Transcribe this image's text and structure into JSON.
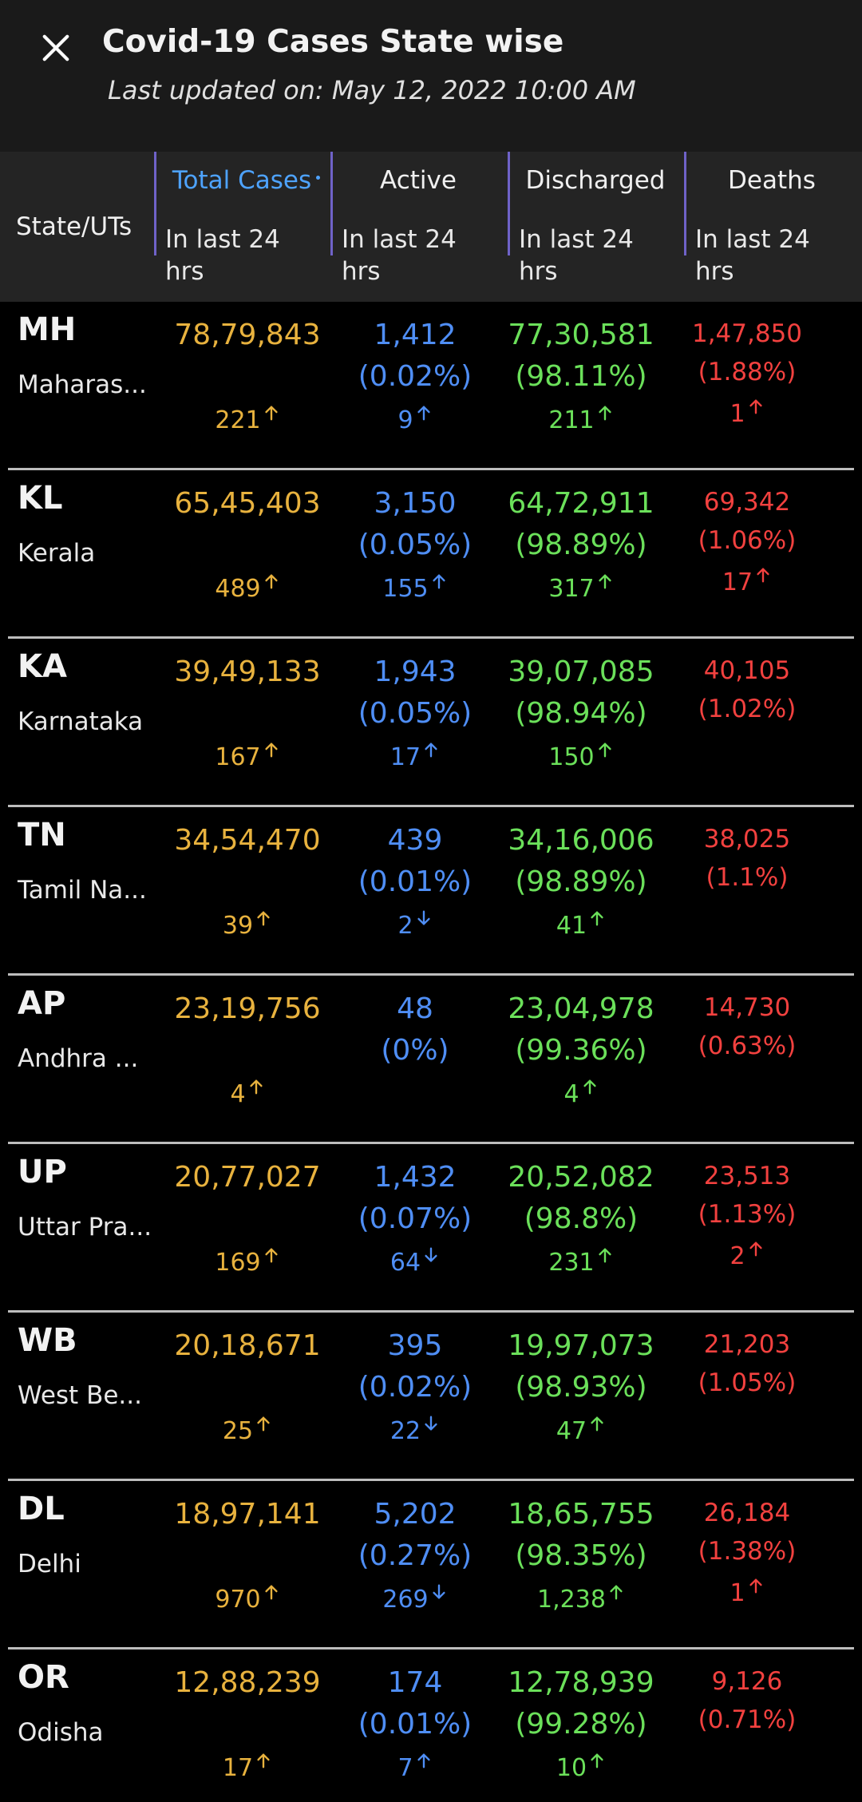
{
  "header": {
    "title": "Covid-19 Cases State wise",
    "last_updated": "Last updated on: May 12, 2022 10:00 AM"
  },
  "table": {
    "state_header": "State/UTs",
    "columns": [
      {
        "label": "Total Cases",
        "sub": "In last 24 hrs",
        "sorted": true
      },
      {
        "label": "Active",
        "sub": "In last 24 hrs",
        "sorted": false
      },
      {
        "label": "Discharged",
        "sub": "In last 24 hrs",
        "sorted": false
      },
      {
        "label": "Deaths",
        "sub": "In last 24 hrs",
        "sorted": false
      }
    ],
    "rows": [
      {
        "code": "MH",
        "name": "Maharas...",
        "total": "78,79,843",
        "total_delta": "221",
        "total_dir": "up",
        "active": "1,412",
        "active_pct": "(0.02%)",
        "active_delta": "9",
        "active_dir": "up",
        "discharged": "77,30,581",
        "discharged_pct": "(98.11%)",
        "discharged_delta": "211",
        "discharged_dir": "up",
        "deaths": "1,47,850",
        "deaths_pct": "(1.88%)",
        "deaths_delta": "1",
        "deaths_dir": "up"
      },
      {
        "code": "KL",
        "name": "Kerala",
        "total": "65,45,403",
        "total_delta": "489",
        "total_dir": "up",
        "active": "3,150",
        "active_pct": "(0.05%)",
        "active_delta": "155",
        "active_dir": "up",
        "discharged": "64,72,911",
        "discharged_pct": "(98.89%)",
        "discharged_delta": "317",
        "discharged_dir": "up",
        "deaths": "69,342",
        "deaths_pct": "(1.06%)",
        "deaths_delta": "17",
        "deaths_dir": "up"
      },
      {
        "code": "KA",
        "name": "Karnataka",
        "total": "39,49,133",
        "total_delta": "167",
        "total_dir": "up",
        "active": "1,943",
        "active_pct": "(0.05%)",
        "active_delta": "17",
        "active_dir": "up",
        "discharged": "39,07,085",
        "discharged_pct": "(98.94%)",
        "discharged_delta": "150",
        "discharged_dir": "up",
        "deaths": "40,105",
        "deaths_pct": "(1.02%)",
        "deaths_delta": "",
        "deaths_dir": ""
      },
      {
        "code": "TN",
        "name": "Tamil Na...",
        "total": "34,54,470",
        "total_delta": "39",
        "total_dir": "up",
        "active": "439",
        "active_pct": "(0.01%)",
        "active_delta": "2",
        "active_dir": "down",
        "discharged": "34,16,006",
        "discharged_pct": "(98.89%)",
        "discharged_delta": "41",
        "discharged_dir": "up",
        "deaths": "38,025",
        "deaths_pct": "(1.1%)",
        "deaths_delta": "",
        "deaths_dir": ""
      },
      {
        "code": "AP",
        "name": "Andhra ...",
        "total": "23,19,756",
        "total_delta": "4",
        "total_dir": "up",
        "active": "48",
        "active_pct": "(0%)",
        "active_delta": "",
        "active_dir": "",
        "discharged": "23,04,978",
        "discharged_pct": "(99.36%)",
        "discharged_delta": "4",
        "discharged_dir": "up",
        "deaths": "14,730",
        "deaths_pct": "(0.63%)",
        "deaths_delta": "",
        "deaths_dir": ""
      },
      {
        "code": "UP",
        "name": "Uttar Pra...",
        "total": "20,77,027",
        "total_delta": "169",
        "total_dir": "up",
        "active": "1,432",
        "active_pct": "(0.07%)",
        "active_delta": "64",
        "active_dir": "down",
        "discharged": "20,52,082",
        "discharged_pct": "(98.8%)",
        "discharged_delta": "231",
        "discharged_dir": "up",
        "deaths": "23,513",
        "deaths_pct": "(1.13%)",
        "deaths_delta": "2",
        "deaths_dir": "up"
      },
      {
        "code": "WB",
        "name": "West Be...",
        "total": "20,18,671",
        "total_delta": "25",
        "total_dir": "up",
        "active": "395",
        "active_pct": "(0.02%)",
        "active_delta": "22",
        "active_dir": "down",
        "discharged": "19,97,073",
        "discharged_pct": "(98.93%)",
        "discharged_delta": "47",
        "discharged_dir": "up",
        "deaths": "21,203",
        "deaths_pct": "(1.05%)",
        "deaths_delta": "",
        "deaths_dir": ""
      },
      {
        "code": "DL",
        "name": "Delhi",
        "total": "18,97,141",
        "total_delta": "970",
        "total_dir": "up",
        "active": "5,202",
        "active_pct": "(0.27%)",
        "active_delta": "269",
        "active_dir": "down",
        "discharged": "18,65,755",
        "discharged_pct": "(98.35%)",
        "discharged_delta": "1,238",
        "discharged_dir": "up",
        "deaths": "26,184",
        "deaths_pct": "(1.38%)",
        "deaths_delta": "1",
        "deaths_dir": "up"
      },
      {
        "code": "OR",
        "name": "Odisha",
        "total": "12,88,239",
        "total_delta": "17",
        "total_dir": "up",
        "active": "174",
        "active_pct": "(0.01%)",
        "active_delta": "7",
        "active_dir": "up",
        "discharged": "12,78,939",
        "discharged_pct": "(99.28%)",
        "discharged_delta": "10",
        "discharged_dir": "up",
        "deaths": "9,126",
        "deaths_pct": "(0.71%)",
        "deaths_delta": "",
        "deaths_dir": ""
      }
    ]
  },
  "colors": {
    "total": "#e8b23e",
    "active": "#4f8ef5",
    "discharged": "#6be05a",
    "deaths": "#f2413f",
    "sorted_header": "#4ea3ff",
    "divider": "#6f62c8"
  },
  "icons": {
    "close": "close-icon",
    "up": "arrow-up-icon",
    "down": "arrow-down-icon"
  }
}
